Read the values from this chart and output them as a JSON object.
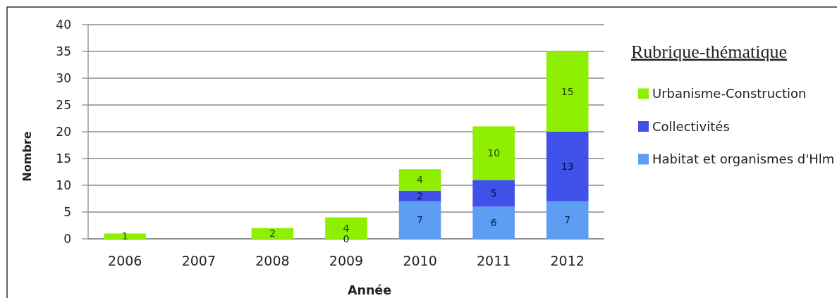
{
  "chart_data": {
    "type": "bar",
    "stacked": true,
    "xlabel": "Année",
    "ylabel": "Nombre",
    "legend_title": "Rubrique-thématique",
    "categories": [
      "2006",
      "2007",
      "2008",
      "2009",
      "2010",
      "2011",
      "2012"
    ],
    "series": [
      {
        "name": "Habitat et organismes d'Hlm",
        "color": "#5e9ef2",
        "values": [
          null,
          null,
          null,
          0,
          7,
          6,
          7
        ]
      },
      {
        "name": "Collectivités",
        "color": "#3f51e8",
        "values": [
          null,
          null,
          null,
          null,
          2,
          5,
          13
        ]
      },
      {
        "name": "Urbanisme-Construction",
        "color": "#8fef00",
        "values": [
          1,
          null,
          2,
          4,
          4,
          10,
          15
        ]
      }
    ],
    "ylim": [
      0,
      40
    ],
    "yticks": [
      0,
      5,
      10,
      15,
      20,
      25,
      30,
      35,
      40
    ],
    "grid": "y",
    "legend": "right",
    "data_labels": true
  }
}
